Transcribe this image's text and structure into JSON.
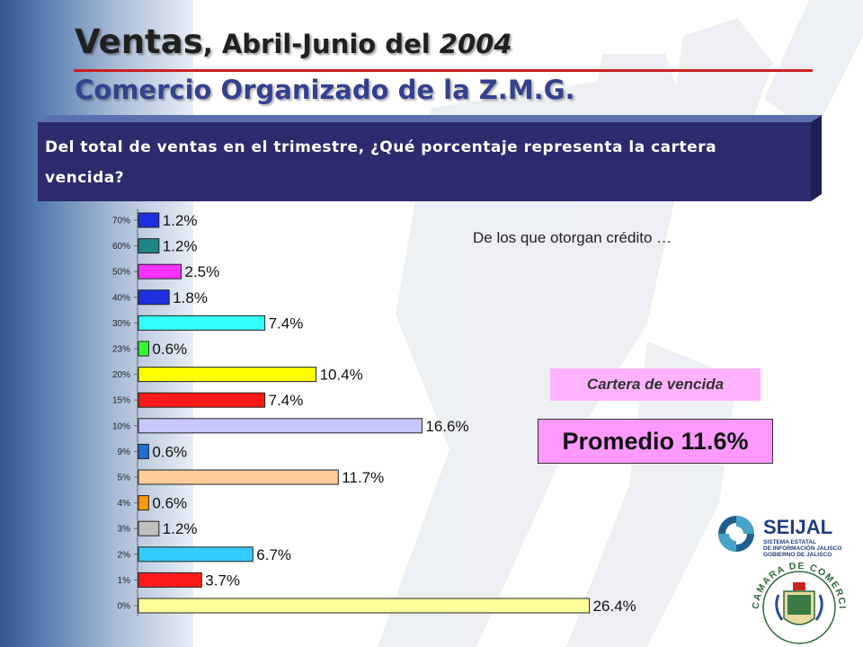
{
  "slide": {
    "title": {
      "part1": "Ventas",
      "part2": ", Abril-Junio del ",
      "year": "2004"
    },
    "subtitle": "Comercio Organizado de la Z.M.G.",
    "question": "Del total de ventas en el trimestre, ¿Qué porcentaje representa la cartera vencida?",
    "note": "De los que otorgan crédito …",
    "legend_label": "Cartera de vencida",
    "average_label": "Promedio 11.6%",
    "colors": {
      "title_rule": "#cc1f1f",
      "banner": "#2b2b6e",
      "subtitle": "#33418f"
    }
  },
  "logos": {
    "seijal": {
      "name": "SEIJAL",
      "line1": "SISTEMA ESTATAL",
      "line2": "DE INFORMACIÓN JALISCO",
      "line3": "GOBIERNO DE JALISCO"
    },
    "canaco": {
      "text": "CAMARA DE COMERCIO DE GUADALAJARA"
    }
  },
  "chart_data": {
    "type": "bar",
    "orientation": "horizontal",
    "categories": [
      "70%",
      "60%",
      "50%",
      "40%",
      "30%",
      "23%",
      "20%",
      "15%",
      "10%",
      "9%",
      "5%",
      "4%",
      "3%",
      "2%",
      "1%",
      "0%"
    ],
    "values": [
      1.2,
      1.2,
      2.5,
      1.8,
      7.4,
      0.6,
      10.4,
      7.4,
      16.6,
      0.6,
      11.7,
      0.6,
      1.2,
      6.7,
      3.7,
      26.4
    ],
    "value_labels": [
      "1.2%",
      "1.2%",
      "2.5%",
      "1.8%",
      "7.4%",
      "0.6%",
      "10.4%",
      "7.4%",
      "16.6%",
      "0.6%",
      "11.7%",
      "0.6%",
      "1.2%",
      "6.7%",
      "3.7%",
      "26.4%"
    ],
    "colors": [
      "#1d2fe0",
      "#1f8585",
      "#ff33ff",
      "#1d2fe0",
      "#33ffff",
      "#33ff33",
      "#ffff00",
      "#ff1a1a",
      "#c8c8ff",
      "#1f6fd8",
      "#ffcc99",
      "#ff9900",
      "#c0c0c0",
      "#33ccff",
      "#ff1a1a",
      "#ffff99"
    ],
    "xlim": [
      0,
      30
    ],
    "grid": false,
    "legend": "none"
  }
}
